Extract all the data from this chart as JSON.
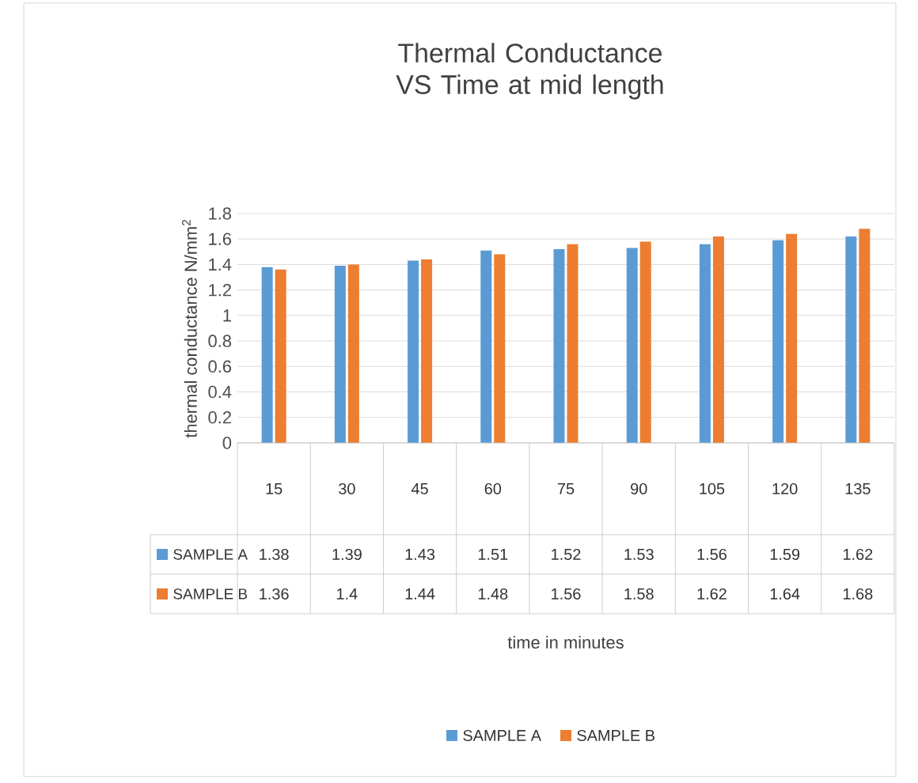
{
  "chart_data": {
    "type": "bar",
    "title": "Thermal Conductance VS Time at mid length",
    "annotations": [
      "time in minutes"
    ],
    "ylabel": "thermal conductance N/mm$^{2}$",
    "categories": [
      "15",
      "30",
      "45",
      "60",
      "75",
      "90",
      "105",
      "120",
      "135"
    ],
    "series": [
      {
        "name": "SAMPLE A",
        "color": "#5b9bd5",
        "values": [
          1.38,
          1.39,
          1.43,
          1.51,
          1.52,
          1.53,
          1.56,
          1.59,
          1.62
        ],
        "value_labels": [
          "1.38",
          "1.39",
          "1.43",
          "1.51",
          "1.52",
          "1.53",
          "1.56",
          "1.59",
          "1.62"
        ]
      },
      {
        "name": "SAMPLE B",
        "color": "#ed7d31",
        "values": [
          1.36,
          1.4,
          1.44,
          1.48,
          1.56,
          1.58,
          1.62,
          1.64,
          1.68
        ],
        "value_labels": [
          "1.36",
          "1.4",
          "1.44",
          "1.48",
          "1.56",
          "1.58",
          "1.62",
          "1.64",
          "1.68"
        ]
      }
    ],
    "ylim": [
      0,
      1.8
    ],
    "yticks": [
      0,
      0.2,
      0.4,
      0.6,
      0.8,
      1,
      1.2,
      1.4,
      1.6,
      1.8
    ],
    "grid": "y",
    "legend": "bottom"
  }
}
